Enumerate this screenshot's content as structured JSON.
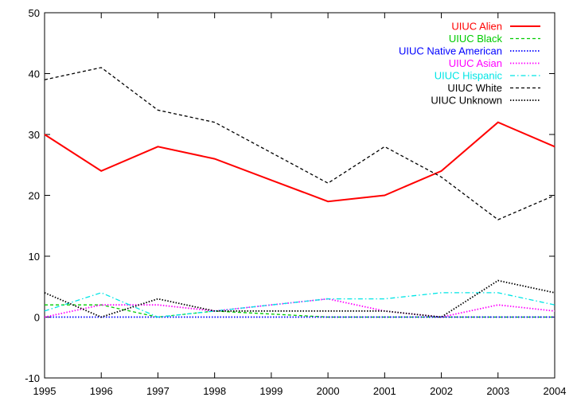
{
  "chart_data": {
    "type": "line",
    "title": "",
    "xlabel": "",
    "ylabel": "",
    "x": [
      1995,
      1996,
      1997,
      1998,
      1999,
      2000,
      2001,
      2002,
      2003,
      2004
    ],
    "xlim": [
      1995,
      2004
    ],
    "ylim": [
      -10,
      50
    ],
    "yticks": [
      -10,
      0,
      10,
      20,
      30,
      40,
      50
    ],
    "xticks": [
      1995,
      1996,
      1997,
      1998,
      1999,
      2000,
      2001,
      2002,
      2003,
      2004
    ],
    "grid": false,
    "legend_position": "top-right",
    "series": [
      {
        "name": "UIUC Alien",
        "color": "#ff0000",
        "dash": "solid",
        "values": [
          30,
          24,
          28,
          26,
          22.5,
          19,
          20,
          24,
          32,
          28
        ]
      },
      {
        "name": "UIUC Black",
        "color": "#00cc00",
        "dash": "dashed",
        "values": [
          2,
          2,
          0,
          1,
          0.5,
          0,
          0,
          0,
          0,
          0
        ]
      },
      {
        "name": "UIUC Native American",
        "color": "#0000ff",
        "dash": "dotted",
        "values": [
          0,
          0,
          0,
          0,
          0,
          0,
          0,
          0,
          0,
          0
        ]
      },
      {
        "name": "UIUC Asian",
        "color": "#ff00ff",
        "dash": "dotted",
        "values": [
          0,
          2,
          2,
          1,
          2,
          3,
          1,
          0,
          2,
          1
        ]
      },
      {
        "name": "UIUC Hispanic",
        "color": "#00e5e5",
        "dash": "dashdot",
        "values": [
          1,
          4,
          0,
          1,
          2,
          3,
          3,
          4,
          4,
          2
        ]
      },
      {
        "name": "UIUC White",
        "color": "#000000",
        "dash": "dashed",
        "values": [
          39,
          41,
          34,
          32,
          27,
          22,
          28,
          23,
          16,
          20
        ]
      },
      {
        "name": "UIUC Unknown",
        "color": "#000000",
        "dash": "dotted",
        "values": [
          4,
          0,
          3,
          1,
          1,
          1,
          1,
          0,
          6,
          4
        ]
      }
    ]
  }
}
